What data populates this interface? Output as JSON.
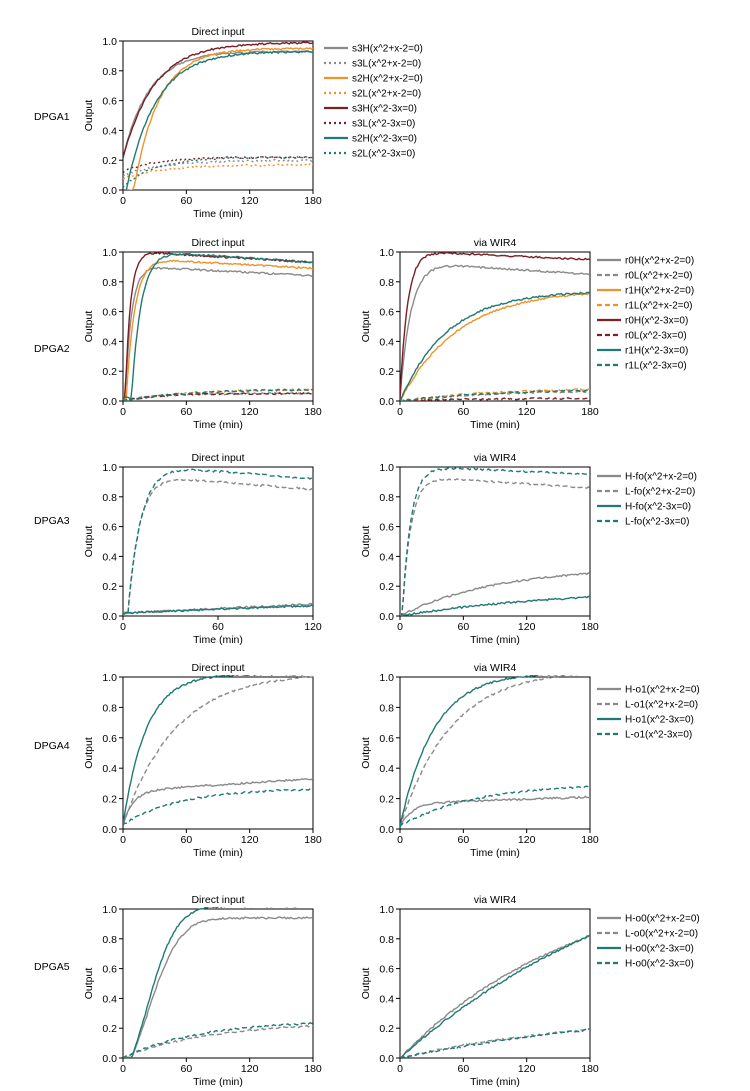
{
  "colors": {
    "gray": "#8a8a8a",
    "orange": "#f0922b",
    "darkred": "#7a1f25",
    "teal": "#1f7a72"
  },
  "chart_data": [
    {
      "type": "line",
      "row_label": "DPGA1",
      "title": "Direct input",
      "xlabel": "Time (min)",
      "ylabel": "Output",
      "xlim": [
        0,
        180
      ],
      "ylim": [
        0,
        1
      ],
      "xticks": [
        0,
        60,
        120,
        180
      ],
      "yticks": [
        0,
        0.2,
        0.4,
        0.6,
        0.8,
        1.0
      ],
      "legend": "right",
      "series": [
        {
          "name": "s3H(x^2+x-2=0)",
          "color": "gray",
          "dash": "solid",
          "kind": "exp",
          "start": 0.22,
          "end": 0.93,
          "tau": 25,
          "delay": 0
        },
        {
          "name": "s3L(x^2+x-2=0)",
          "color": "gray",
          "dash": "dotted",
          "kind": "exp",
          "start": 0.1,
          "end": 0.2,
          "tau": 40,
          "delay": 0
        },
        {
          "name": "s2H(x^2+x-2=0)",
          "color": "orange",
          "dash": "solid",
          "kind": "exp",
          "start": 0.0,
          "end": 0.95,
          "tau": 24,
          "delay": 10
        },
        {
          "name": "s2L(x^2+x-2=0)",
          "color": "orange",
          "dash": "dotted",
          "kind": "exp",
          "start": 0.08,
          "end": 0.17,
          "tau": 40,
          "delay": 0
        },
        {
          "name": "s3H(x^2-3x=0)",
          "color": "darkred",
          "dash": "solid",
          "kind": "exp",
          "start": 0.22,
          "end": 0.99,
          "tau": 30,
          "delay": 0
        },
        {
          "name": "s3L(x^2-3x=0)",
          "color": "darkred",
          "dash": "dotted",
          "kind": "exp",
          "start": 0.12,
          "end": 0.22,
          "tau": 30,
          "delay": 0
        },
        {
          "name": "s2H(x^2-3x=0)",
          "color": "teal",
          "dash": "solid",
          "kind": "exp",
          "start": 0.0,
          "end": 0.93,
          "tau": 28,
          "delay": 3
        },
        {
          "name": "s2L(x^2-3x=0)",
          "color": "teal",
          "dash": "dotted",
          "kind": "exp",
          "start": 0.02,
          "end": 0.22,
          "tau": 30,
          "delay": 0
        }
      ]
    },
    {
      "type": "line",
      "row_label": "DPGA2",
      "title": "Direct input",
      "xlabel": "Time (min)",
      "ylabel": "Output",
      "xlim": [
        0,
        180
      ],
      "ylim": [
        0,
        1
      ],
      "xticks": [
        0,
        60,
        120,
        180
      ],
      "yticks": [
        0,
        0.2,
        0.4,
        0.6,
        0.8,
        1.0
      ],
      "series": [
        {
          "name": "r0H(x^2+x-2=0)",
          "color": "gray",
          "kind": "peak",
          "start": 0.02,
          "end": 0.9,
          "tau": 6,
          "delay": 2,
          "drift": -0.06
        },
        {
          "name": "r0L(x^2+x-2=0)",
          "color": "gray",
          "dash": "dashed",
          "kind": "exp",
          "start": 0.0,
          "end": 0.05,
          "tau": 30,
          "delay": 0
        },
        {
          "name": "r1H(x^2+x-2=0)",
          "color": "orange",
          "kind": "peak",
          "start": 0.02,
          "end": 0.95,
          "tau": 8,
          "delay": 3,
          "drift": -0.06
        },
        {
          "name": "r1L(x^2+x-2=0)",
          "color": "orange",
          "dash": "dashed",
          "kind": "exp",
          "start": 0.0,
          "end": 0.08,
          "tau": 60,
          "delay": 0
        },
        {
          "name": "r0H(x^2-3x=0)",
          "color": "darkred",
          "kind": "peak",
          "start": 0.02,
          "end": 1.0,
          "tau": 5,
          "delay": 2,
          "drift": -0.07
        },
        {
          "name": "r0L(x^2-3x=0)",
          "color": "darkred",
          "dash": "dashed",
          "kind": "exp",
          "start": 0.0,
          "end": 0.05,
          "tau": 30,
          "delay": 0
        },
        {
          "name": "r1H(x^2-3x=0)",
          "color": "teal",
          "kind": "peak",
          "start": 0.02,
          "end": 1.0,
          "tau": 9,
          "delay": 8,
          "drift": -0.07
        },
        {
          "name": "r1L(x^2-3x=0)",
          "color": "teal",
          "dash": "dashed",
          "kind": "exp",
          "start": 0.0,
          "end": 0.08,
          "tau": 60,
          "delay": 0
        }
      ]
    },
    {
      "type": "line",
      "row_label": "",
      "title": "via WIR4",
      "xlabel": "Time (min)",
      "ylabel": "Output",
      "xlim": [
        0,
        180
      ],
      "ylim": [
        0,
        1
      ],
      "xticks": [
        0,
        60,
        120,
        180
      ],
      "yticks": [
        0,
        0.2,
        0.4,
        0.6,
        0.8,
        1.0
      ],
      "legend": "right",
      "series": [
        {
          "name": "r0H(x^2+x-2=0)",
          "color": "gray",
          "dash": "solid",
          "kind": "peak",
          "start": 0.02,
          "end": 0.92,
          "tau": 10,
          "delay": 0,
          "drift": -0.07
        },
        {
          "name": "r0L(x^2+x-2=0)",
          "color": "gray",
          "dash": "dashed",
          "kind": "exp",
          "start": 0.0,
          "end": 0.07,
          "tau": 80,
          "delay": 0
        },
        {
          "name": "r1H(x^2+x-2=0)",
          "color": "orange",
          "dash": "solid",
          "kind": "exp",
          "start": 0.0,
          "end": 0.75,
          "tau": 55,
          "delay": 0
        },
        {
          "name": "r1L(x^2+x-2=0)",
          "color": "orange",
          "dash": "dashed",
          "kind": "exp",
          "start": 0.0,
          "end": 0.09,
          "tau": 90,
          "delay": 0
        },
        {
          "name": "r0H(x^2-3x=0)",
          "color": "darkred",
          "dash": "solid",
          "kind": "peak",
          "start": 0.02,
          "end": 1.0,
          "tau": 7,
          "delay": 0,
          "drift": -0.05
        },
        {
          "name": "r0L(x^2-3x=0)",
          "color": "darkred",
          "dash": "dashed",
          "kind": "exp",
          "start": 0.0,
          "end": 0.02,
          "tau": 80,
          "delay": 0
        },
        {
          "name": "r1H(x^2-3x=0)",
          "color": "teal",
          "dash": "solid",
          "kind": "exp",
          "start": 0.0,
          "end": 0.74,
          "tau": 45,
          "delay": 0
        },
        {
          "name": "r1L(x^2-3x=0)",
          "color": "teal",
          "dash": "dashed",
          "kind": "exp",
          "start": 0.0,
          "end": 0.08,
          "tau": 90,
          "delay": 0
        }
      ]
    },
    {
      "type": "line",
      "row_label": "DPGA3",
      "title": "Direct input",
      "xlabel": "Time (min)",
      "ylabel": "Output",
      "xlim": [
        0,
        120
      ],
      "ylim": [
        0,
        1
      ],
      "xticks": [
        0,
        60,
        120
      ],
      "yticks": [
        0,
        0.2,
        0.4,
        0.6,
        0.8,
        1.0
      ],
      "series": [
        {
          "name": "H-fo(x^2+x-2=0)",
          "color": "gray",
          "kind": "lin",
          "start": 0.02,
          "end": 0.08
        },
        {
          "name": "L-fo(x^2+x-2=0)",
          "color": "gray",
          "dash": "dashed",
          "kind": "peak",
          "start": 0.0,
          "end": 0.93,
          "tau": 7,
          "delay": 3,
          "drift": -0.08
        },
        {
          "name": "H-fo(x^2-3x=0)",
          "color": "teal",
          "kind": "lin",
          "start": 0.02,
          "end": 0.07
        },
        {
          "name": "L-fo(x^2-3x=0)",
          "color": "teal",
          "dash": "dashed",
          "kind": "peak",
          "start": 0.0,
          "end": 1.0,
          "tau": 8,
          "delay": 3,
          "drift": -0.08
        }
      ]
    },
    {
      "type": "line",
      "row_label": "",
      "title": "via WIR4",
      "xlabel": "Time (min)",
      "ylabel": "Output",
      "xlim": [
        0,
        180
      ],
      "ylim": [
        0,
        1
      ],
      "xticks": [
        0,
        60,
        120,
        180
      ],
      "yticks": [
        0,
        0.2,
        0.4,
        0.6,
        0.8,
        1.0
      ],
      "legend": "right",
      "series": [
        {
          "name": "H-fo(x^2+x-2=0)",
          "color": "gray",
          "dash": "solid",
          "kind": "exp",
          "start": 0.0,
          "end": 0.33,
          "tau": 90,
          "delay": 0
        },
        {
          "name": "L-fo(x^2+x-2=0)",
          "color": "gray",
          "dash": "dashed",
          "kind": "peak",
          "start": 0.0,
          "end": 0.93,
          "tau": 8,
          "delay": 2,
          "drift": -0.07
        },
        {
          "name": "H-fo(x^2-3x=0)",
          "color": "teal",
          "dash": "solid",
          "kind": "exp",
          "start": 0.0,
          "end": 0.18,
          "tau": 150,
          "delay": 0
        },
        {
          "name": "L-fo(x^2-3x=0)",
          "color": "teal",
          "dash": "dashed",
          "kind": "peak",
          "start": 0.0,
          "end": 1.0,
          "tau": 8,
          "delay": 2,
          "drift": -0.05
        }
      ]
    },
    {
      "type": "line",
      "row_label": "DPGA4",
      "title": "Direct input",
      "xlabel": "Time (min)",
      "ylabel": "Output",
      "xlim": [
        0,
        180
      ],
      "ylim": [
        0,
        1
      ],
      "xticks": [
        0,
        60,
        120,
        180
      ],
      "yticks": [
        0,
        0.2,
        0.4,
        0.6,
        0.8,
        1.0
      ],
      "series": [
        {
          "name": "H-o1(x^2+x-2=0)",
          "color": "gray",
          "kind": "exp2",
          "start": 0.03,
          "end": 0.33,
          "tau": 10,
          "drift": 0.08
        },
        {
          "name": "L-o1(x^2+x-2=0)",
          "color": "gray",
          "dash": "dashed",
          "kind": "exp",
          "start": 0.03,
          "end": 1.03,
          "tau": 50,
          "delay": 0
        },
        {
          "name": "H-o1(x^2-3x=0)",
          "color": "teal",
          "kind": "exp",
          "start": 0.03,
          "end": 1.02,
          "tau": 22,
          "delay": 0
        },
        {
          "name": "L-o1(x^2-3x=0)",
          "color": "teal",
          "dash": "dashed",
          "kind": "exp",
          "start": 0.03,
          "end": 0.27,
          "tau": 55,
          "delay": 0
        }
      ]
    },
    {
      "type": "line",
      "row_label": "",
      "title": "via WIR4",
      "xlabel": "Time (min)",
      "ylabel": "Output",
      "xlim": [
        0,
        180
      ],
      "ylim": [
        0,
        1
      ],
      "xticks": [
        0,
        60,
        120,
        180
      ],
      "yticks": [
        0,
        0.2,
        0.4,
        0.6,
        0.8,
        1.0
      ],
      "legend": "right",
      "series": [
        {
          "name": "H-o1(x^2+x-2=0)",
          "color": "gray",
          "dash": "solid",
          "kind": "exp2",
          "start": 0.02,
          "end": 0.21,
          "tau": 12,
          "drift": 0.04
        },
        {
          "name": "L-o1(x^2+x-2=0)",
          "color": "gray",
          "dash": "dashed",
          "kind": "exp",
          "start": 0.02,
          "end": 1.05,
          "tau": 48,
          "delay": 0
        },
        {
          "name": "H-o1(x^2-3x=0)",
          "color": "teal",
          "dash": "solid",
          "kind": "exp",
          "start": 0.02,
          "end": 1.03,
          "tau": 32,
          "delay": 0
        },
        {
          "name": "L-o1(x^2-3x=0)",
          "color": "teal",
          "dash": "dashed",
          "kind": "exp",
          "start": 0.02,
          "end": 0.3,
          "tau": 70,
          "delay": 0
        }
      ]
    },
    {
      "type": "line",
      "row_label": "DPGA5",
      "title": "Direct input",
      "xlabel": "Time (min)",
      "ylabel": "Output",
      "xlim": [
        0,
        180
      ],
      "ylim": [
        0,
        1
      ],
      "xticks": [
        0,
        60,
        120,
        180
      ],
      "yticks": [
        0,
        0.2,
        0.4,
        0.6,
        0.8,
        1.0
      ],
      "series": [
        {
          "name": "H-o0(x^2+x-2=0)",
          "color": "gray",
          "kind": "sig",
          "start": 0.0,
          "end": 0.94,
          "tau": 30,
          "delay": 8
        },
        {
          "name": "L-o0(x^2+x-2=0)",
          "color": "gray",
          "dash": "dashed",
          "kind": "exp",
          "start": 0.0,
          "end": 0.24,
          "tau": 80,
          "delay": 0
        },
        {
          "name": "H-o0(x^2-3x=0)",
          "color": "teal",
          "kind": "sig",
          "start": 0.0,
          "end": 1.02,
          "tau": 28,
          "delay": 8
        },
        {
          "name": "H-o0(x^2-3x=0)",
          "color": "teal",
          "dash": "dashed",
          "kind": "exp",
          "start": 0.0,
          "end": 0.25,
          "tau": 70,
          "delay": 0
        }
      ]
    },
    {
      "type": "line",
      "row_label": "",
      "title": "via WIR4",
      "xlabel": "Time (min)",
      "ylabel": "Output",
      "xlim": [
        0,
        180
      ],
      "ylim": [
        0,
        1
      ],
      "xticks": [
        0,
        60,
        120,
        180
      ],
      "yticks": [
        0,
        0.2,
        0.4,
        0.6,
        0.8,
        1.0
      ],
      "legend": "right",
      "series": [
        {
          "name": "H-o0(x^2+x-2=0)",
          "color": "gray",
          "dash": "solid",
          "kind": "exp",
          "start": 0.0,
          "end": 1.25,
          "tau": 170,
          "delay": 0
        },
        {
          "name": "L-o0(x^2+x-2=0)",
          "color": "gray",
          "dash": "dashed",
          "kind": "exp",
          "start": 0.0,
          "end": 0.3,
          "tau": 180,
          "delay": 0
        },
        {
          "name": "H-o0(x^2-3x=0)",
          "color": "teal",
          "dash": "solid",
          "kind": "exp",
          "start": 0.0,
          "end": 1.6,
          "tau": 250,
          "delay": 0
        },
        {
          "name": "H-o0(x^2-3x=0)",
          "color": "teal",
          "dash": "dashed",
          "kind": "exp",
          "start": 0.0,
          "end": 0.38,
          "tau": 260,
          "delay": 0
        }
      ]
    }
  ]
}
